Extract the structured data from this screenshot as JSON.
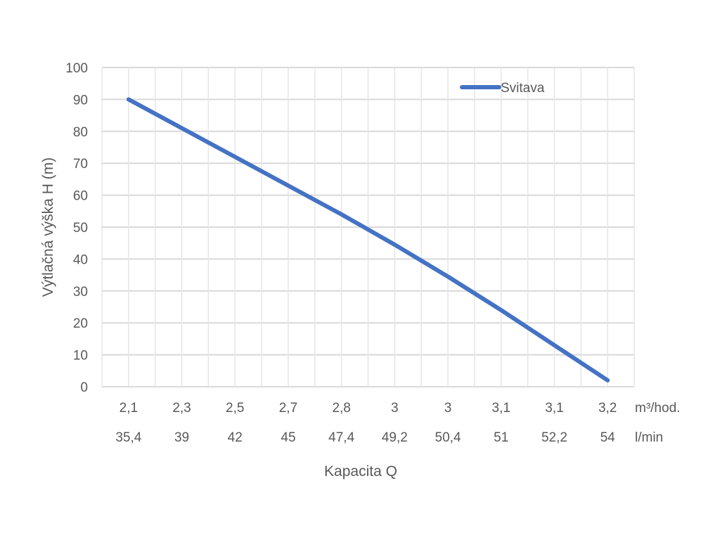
{
  "chart_data": {
    "type": "line",
    "title": "",
    "xlabel": "Kapacita Q",
    "ylabel": "Výtlačná výška H (m)",
    "ylim": [
      0,
      100
    ],
    "yticks": [
      0,
      10,
      20,
      30,
      40,
      50,
      60,
      70,
      80,
      90,
      100
    ],
    "grid": true,
    "legend_position": "top-right",
    "categories_row1": [
      "2,1",
      "2,3",
      "2,5",
      "2,7",
      "2,8",
      "3",
      "3",
      "3,1",
      "3,1",
      "3,2"
    ],
    "categories_row2": [
      "35,4",
      "39",
      "42",
      "45",
      "47,4",
      "49,2",
      "50,4",
      "51",
      "52,2",
      "54"
    ],
    "row1_unit": "m³/hod.",
    "row2_unit": "l/min",
    "series": [
      {
        "name": "Svitava",
        "color": "#4472C4",
        "values": [
          90,
          81,
          72,
          63,
          54,
          44.5,
          34.5,
          24,
          13,
          2
        ]
      }
    ]
  }
}
